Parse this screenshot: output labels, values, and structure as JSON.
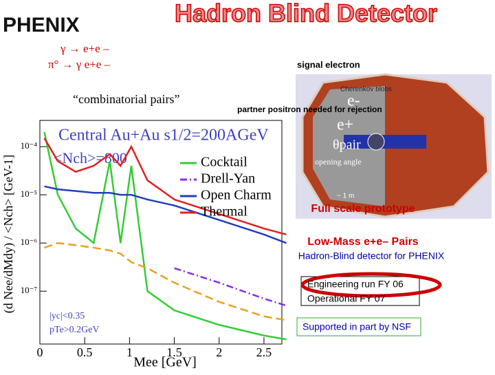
{
  "header": {
    "logo": "PHENIX",
    "title": "Hadron Blind Detector"
  },
  "reactions": [
    "γ → e+e –",
    "π° → γ e+e –"
  ],
  "combinatorial": "“combinatorial pairs”",
  "detector": {
    "signal": "signal electron",
    "blobs": "Cherenkov blobs",
    "partner": "partner positron needed for rejection",
    "e_minus": "e-",
    "e_plus": "e+",
    "theta": "θpair",
    "angle": "opening angle",
    "size": "~ 1 m",
    "caption": "Full scale prototype"
  },
  "panel": {
    "heading": "Low-Mass e+e– Pairs",
    "subheading": "Hadron-Blind detector for PHENIX",
    "engineering": "Engineering run FY 06",
    "operational": "Operational FY 07",
    "support": "Supported in part by NSF"
  },
  "chart_data": {
    "type": "line",
    "title": "Central Au+Au  s1/2=200AGeV",
    "subtitle": "<Nch>=800",
    "y_label": "(d Nee/dMdy) / <Nch> [GeV-1]",
    "x_label": "Mee [GeV]",
    "annotations": [
      "|yc|<0.35",
      "pTe>0.2GeV"
    ],
    "log_y": true,
    "x": [
      0.05,
      0.2,
      0.4,
      0.6,
      0.78,
      0.9,
      1.02,
      1.2,
      1.5,
      2,
      2.5,
      2.75
    ],
    "xlim": [
      0,
      2.7
    ],
    "xticks": [
      0,
      0.5,
      1,
      1.5,
      2,
      2.5
    ],
    "ylim": [
      8e-09,
      0.00035
    ],
    "yticks": [
      {
        "value": 0.0001,
        "label": "10⁻⁴"
      },
      {
        "value": 1e-05,
        "label": "10⁻⁵"
      },
      {
        "value": 1e-06,
        "label": "10⁻⁶"
      },
      {
        "value": 1e-07,
        "label": "10⁻⁷"
      }
    ],
    "series": [
      {
        "name": "Cocktail",
        "color": "#33cc33",
        "dash": "",
        "values": [
          0.0002,
          1e-05,
          2e-06,
          1e-06,
          5e-05,
          1e-06,
          4e-05,
          1e-07,
          4e-08,
          2e-08,
          1.2e-08,
          1e-08
        ]
      },
      {
        "name": "Drell-Yan",
        "color": "#8a2be2",
        "dash": "10 4 2 4",
        "values": [
          null,
          null,
          null,
          null,
          null,
          null,
          null,
          null,
          3e-07,
          1.5e-07,
          7e-08,
          5e-08
        ]
      },
      {
        "name": "Open Charm",
        "color": "#1f3fbf",
        "dash": "",
        "values": [
          1.5e-05,
          1.3e-05,
          1.2e-05,
          1.1e-05,
          1.1e-05,
          1e-05,
          1e-05,
          8e-06,
          6e-06,
          3e-06,
          1.5e-06,
          1e-06
        ]
      },
      {
        "name": "Thermal",
        "color": "#e02020",
        "dash": "",
        "values": [
          0.00015,
          5e-05,
          3e-05,
          4e-05,
          7e-05,
          4e-05,
          0.0001,
          2e-05,
          8e-06,
          4e-06,
          2e-06,
          1.5e-06
        ]
      },
      {
        "color": "#e8a020",
        "dash": "12 6",
        "values": [
          8e-07,
          1e-06,
          9e-07,
          8e-07,
          7e-07,
          6e-07,
          4e-07,
          3e-07,
          1.5e-07,
          6e-08,
          3e-08,
          2.5e-08
        ]
      }
    ]
  }
}
